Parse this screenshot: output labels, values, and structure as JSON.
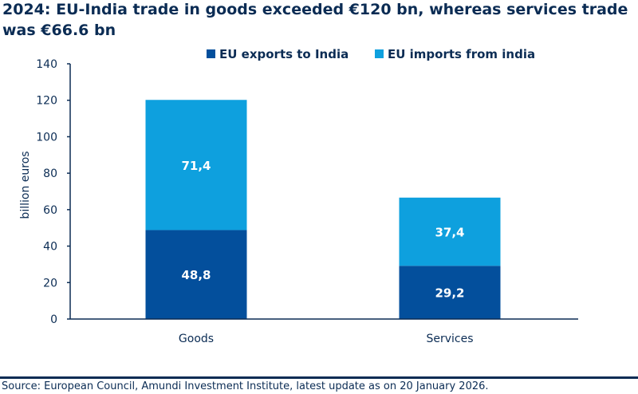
{
  "chart_data": {
    "type": "bar",
    "stacked": true,
    "title": "2024: EU-India trade in goods exceeded €120 bn, whereas services trade was €66.6 bn",
    "xlabel": "",
    "ylabel": "billion euros",
    "categories": [
      "Goods",
      "Services"
    ],
    "series": [
      {
        "name": "EU exports to India",
        "values": [
          48.8,
          29.2
        ],
        "labels": [
          "48,8",
          "29,2"
        ],
        "color": "#034f9c"
      },
      {
        "name": "EU imports from india",
        "values": [
          71.4,
          37.4
        ],
        "labels": [
          "71,4",
          "37,4"
        ],
        "color": "#0ea0de"
      }
    ],
    "ylim": [
      0,
      140
    ],
    "yticks": [
      0,
      20,
      40,
      60,
      80,
      100,
      120,
      140
    ],
    "grid": false,
    "legend": "top"
  },
  "source": "Source: European Council, Amundi Investment Institute, latest update as on 20 January 2026."
}
